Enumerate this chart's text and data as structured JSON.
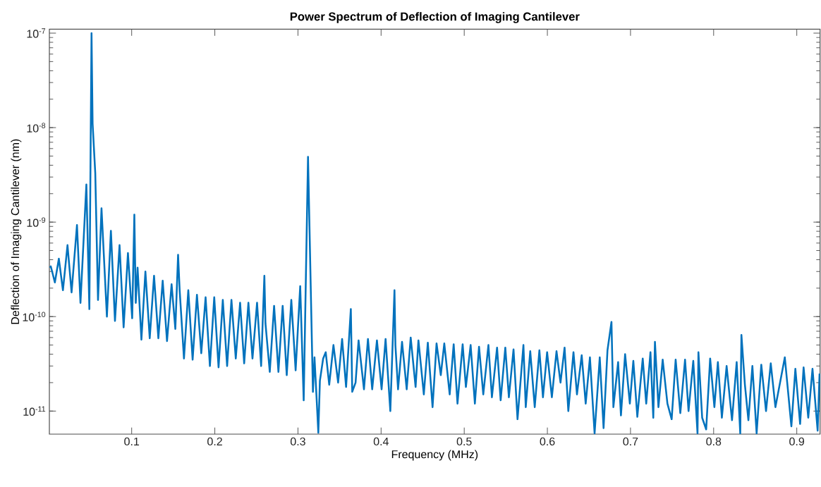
{
  "chart_data": {
    "type": "line",
    "title": "Power Spectrum of Deflection of Imaging Cantilever",
    "xlabel": "Frequency (MHz)",
    "ylabel": "Deflection of Imaging Cantilever (nm)",
    "color": "#0072bd",
    "log": "y",
    "xlim": [
      0.001,
      0.928
    ],
    "ylim": [
      5.7e-12,
      1.1e-07
    ],
    "xticks": [
      0.1,
      0.2,
      0.3,
      0.4,
      0.5,
      0.6,
      0.7,
      0.8,
      0.9
    ],
    "yticks": [
      {
        "value": 1e-11,
        "label": "10$^{-11}$"
      },
      {
        "value": 1e-10,
        "label": "10$^{-10}$"
      },
      {
        "value": 1e-09,
        "label": "10$^{-9}$"
      },
      {
        "value": 1e-08,
        "label": "10$^{-8}$"
      },
      {
        "value": 1e-07,
        "label": "10$^{-7}$"
      }
    ],
    "x": [
      0.0015,
      0.0027,
      0.0043,
      0.0076,
      0.0124,
      0.0173,
      0.0228,
      0.0277,
      0.0342,
      0.0384,
      0.0455,
      0.0491,
      0.0517,
      0.053,
      0.0562,
      0.0595,
      0.0637,
      0.0702,
      0.075,
      0.0799,
      0.0854,
      0.0903,
      0.0955,
      0.1006,
      0.1032,
      0.1049,
      0.1071,
      0.1117,
      0.1165,
      0.1217,
      0.1269,
      0.1321,
      0.1373,
      0.1425,
      0.148,
      0.1525,
      0.1558,
      0.1577,
      0.1629,
      0.1681,
      0.1733,
      0.1785,
      0.1837,
      0.1889,
      0.1941,
      0.1993,
      0.2045,
      0.2096,
      0.2148,
      0.22,
      0.2252,
      0.2304,
      0.2353,
      0.2404,
      0.2453,
      0.2508,
      0.2557,
      0.2596,
      0.2609,
      0.2661,
      0.2713,
      0.2765,
      0.2816,
      0.2865,
      0.292,
      0.2972,
      0.3027,
      0.3069,
      0.3121,
      0.318,
      0.3199,
      0.3232,
      0.3245,
      0.3264,
      0.3303,
      0.3334,
      0.3376,
      0.3427,
      0.3483,
      0.3531,
      0.3579,
      0.3636,
      0.3653,
      0.3693,
      0.3729,
      0.3794,
      0.3842,
      0.3893,
      0.395,
      0.4006,
      0.4054,
      0.4111,
      0.4161,
      0.4172,
      0.4204,
      0.4252,
      0.4308,
      0.4356,
      0.4415,
      0.4449,
      0.4514,
      0.4562,
      0.4619,
      0.4667,
      0.4718,
      0.476,
      0.4825,
      0.4873,
      0.4919,
      0.4981,
      0.502,
      0.5077,
      0.5128,
      0.5178,
      0.5229,
      0.5291,
      0.5333,
      0.5395,
      0.5438,
      0.5494,
      0.5537,
      0.5593,
      0.5641,
      0.5712,
      0.574,
      0.5794,
      0.5848,
      0.5904,
      0.5947,
      0.5997,
      0.6054,
      0.611,
      0.6158,
      0.6207,
      0.6252,
      0.6314,
      0.6356,
      0.6413,
      0.6461,
      0.6512,
      0.6568,
      0.663,
      0.6676,
      0.6723,
      0.6771,
      0.6794,
      0.6851,
      0.6885,
      0.6935,
      0.6992,
      0.7034,
      0.7082,
      0.7147,
      0.7189,
      0.724,
      0.7274,
      0.7294,
      0.7336,
      0.7387,
      0.7444,
      0.7495,
      0.7543,
      0.7599,
      0.7656,
      0.7698,
      0.7755,
      0.7806,
      0.7817,
      0.7862,
      0.791,
      0.7958,
      0.8009,
      0.8051,
      0.8099,
      0.8156,
      0.8221,
      0.8277,
      0.832,
      0.8334,
      0.8376,
      0.8418,
      0.8466,
      0.8517,
      0.8573,
      0.863,
      0.8687,
      0.8743,
      0.8856,
      0.8935,
      0.8983,
      0.904,
      0.9082,
      0.9138,
      0.9189,
      0.9251,
      0.9274
    ],
    "values": [
      3.3e-10,
      3.4e-10,
      3e-10,
      2.3e-10,
      4.1e-10,
      1.9e-10,
      5.7e-10,
      1.8e-10,
      9.3e-10,
      1.4e-10,
      2.5e-09,
      1.2e-10,
      1e-07,
      1.1e-08,
      3.3e-09,
      1.5e-10,
      1.4e-09,
      1e-10,
      8.1e-10,
      9e-11,
      5.7e-10,
      7.7e-11,
      4.7e-10,
      9.6e-11,
      1.2e-09,
      1.4e-10,
      3.3e-10,
      5.7e-11,
      3e-10,
      5.9e-11,
      2.7e-10,
      5.9e-11,
      2.4e-10,
      5.5e-11,
      2.2e-10,
      7.4e-11,
      4.5e-10,
      1.9e-10,
      3.6e-11,
      1.9e-10,
      3.5e-11,
      1.7e-10,
      4.1e-11,
      1.6e-10,
      3e-11,
      1.6e-10,
      2.9e-11,
      1.5e-10,
      3e-11,
      1.5e-10,
      3.6e-11,
      1.4e-10,
      3.2e-11,
      1.4e-10,
      3.6e-11,
      1.4e-10,
      3e-11,
      2.7e-10,
      8.5e-11,
      2.6e-11,
      1.3e-10,
      2.6e-11,
      1.3e-10,
      2.4e-11,
      1.5e-10,
      2.7e-11,
      2.1e-10,
      1.3e-11,
      4.9e-09,
      1.6e-11,
      3.7e-11,
      1e-11,
      5.9e-12,
      2.1e-11,
      3.6e-11,
      4.2e-11,
      1.9e-11,
      5e-11,
      2e-11,
      5.8e-11,
      1.8e-11,
      1.2e-10,
      1.6e-11,
      2e-11,
      5.6e-11,
      1.7e-11,
      5.8e-11,
      1.7e-11,
      5.6e-11,
      1.7e-11,
      5.8e-11,
      1e-11,
      1.9e-10,
      5e-11,
      1.7e-11,
      5.4e-11,
      1.7e-11,
      6e-11,
      1.8e-11,
      5.6e-11,
      1.5e-11,
      5.3e-11,
      1.1e-11,
      5.2e-11,
      2.4e-11,
      5.2e-11,
      1.5e-11,
      5.1e-11,
      1.2e-11,
      5.1e-11,
      1.8e-11,
      5e-11,
      1.2e-11,
      4.8e-11,
      1.5e-11,
      5e-11,
      1.4e-11,
      4.7e-11,
      1.3e-11,
      4.7e-11,
      1.4e-11,
      4.5e-11,
      8.2e-12,
      5e-11,
      1.1e-11,
      4.3e-11,
      1.1e-11,
      4.4e-11,
      1.4e-11,
      4.2e-11,
      1.4e-11,
      4.3e-11,
      2e-11,
      4.7e-11,
      1e-11,
      4.2e-11,
      1.5e-11,
      3.9e-11,
      1.2e-11,
      3.7e-11,
      5.8e-12,
      3.7e-11,
      6.6e-12,
      4.4e-11,
      8.8e-11,
      1.1e-11,
      3.3e-11,
      9e-12,
      4e-11,
      1.2e-11,
      3.4e-11,
      8.7e-12,
      3.6e-11,
      1.2e-11,
      4.2e-11,
      8.5e-12,
      5.4e-11,
      1.1e-11,
      3.5e-11,
      1.2e-11,
      8.2e-12,
      3.5e-11,
      9.5e-12,
      3.5e-11,
      1e-11,
      3.4e-11,
      5.8e-12,
      4.2e-11,
      8.5e-12,
      6.4e-12,
      3.6e-11,
      1.1e-11,
      3.3e-11,
      8.5e-12,
      3e-11,
      8e-12,
      3.3e-11,
      5.8e-12,
      6.4e-11,
      1.9e-11,
      8e-12,
      3e-11,
      5.8e-12,
      3.1e-11,
      1e-11,
      3.2e-11,
      1.1e-11,
      3.7e-11,
      6.9e-12,
      2.8e-11,
      7.3e-12,
      2.9e-11,
      8.5e-12,
      2.8e-11,
      6.2e-12,
      2.5e-11
    ]
  }
}
